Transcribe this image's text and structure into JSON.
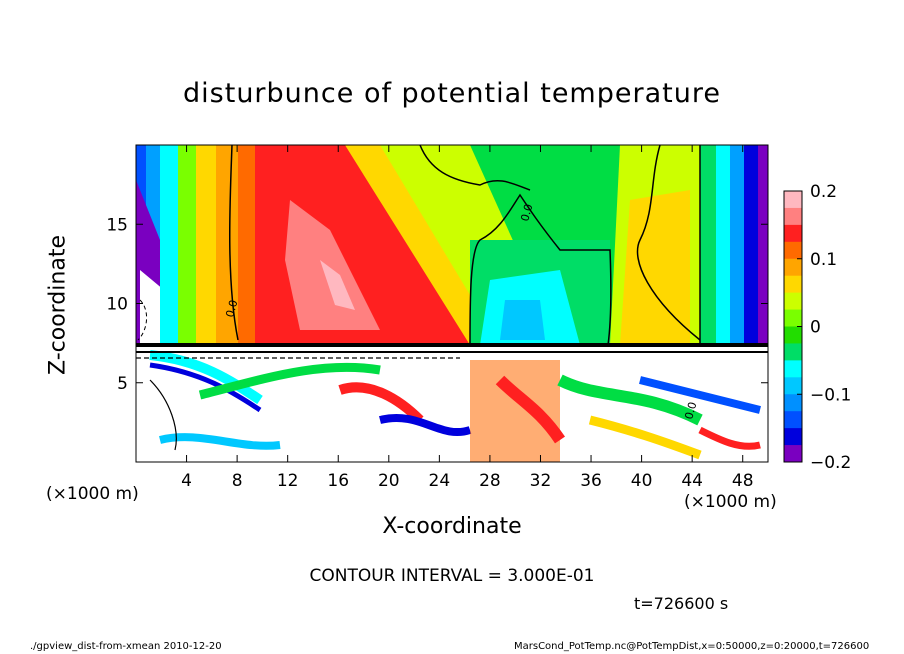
{
  "chart_data": {
    "type": "heatmap",
    "title": "disturbunce of potential temperature",
    "xlabel": "X-coordinate",
    "ylabel": "Z-coordinate",
    "x_unit_left": "(×1000 m)",
    "x_unit_right": "(×1000 m)",
    "xlim": [
      0,
      50
    ],
    "ylim": [
      0,
      20
    ],
    "x_ticks": [
      4,
      8,
      12,
      16,
      20,
      24,
      28,
      32,
      36,
      40,
      44,
      48
    ],
    "y_ticks": [
      5,
      10,
      15
    ],
    "colorbar": {
      "range": [
        -0.2,
        0.2
      ],
      "ticks": [
        {
          "value": 0.2,
          "label": "0.2"
        },
        {
          "value": 0.1,
          "label": "0.1"
        },
        {
          "value": 0,
          "label": "0"
        },
        {
          "value": -0.1,
          "label": "−0.1"
        },
        {
          "value": -0.2,
          "label": "−0.2"
        }
      ],
      "colors": [
        "#ffb8c0",
        "#ff8080",
        "#ff2020",
        "#ff6a00",
        "#ffa500",
        "#ffd800",
        "#ccff00",
        "#7aff00",
        "#22dd00",
        "#00dd66",
        "#00ffff",
        "#00c8ff",
        "#0090ff",
        "#0050ff",
        "#0000dd",
        "#7a00c0"
      ]
    },
    "contour_labels": [
      "0.0",
      "0.0",
      "0.0"
    ],
    "grid": false,
    "legend": "colorbar-right"
  },
  "contour_interval": "CONTOUR INTERVAL = 3.000E-01",
  "time_label": "t=726600 s",
  "footer_left": "./gpview_dist-from-xmean  2010-12-20",
  "footer_right": "MarsCond_PotTemp.nc@PotTempDist,x=0:50000,z=0:20000,t=726600"
}
